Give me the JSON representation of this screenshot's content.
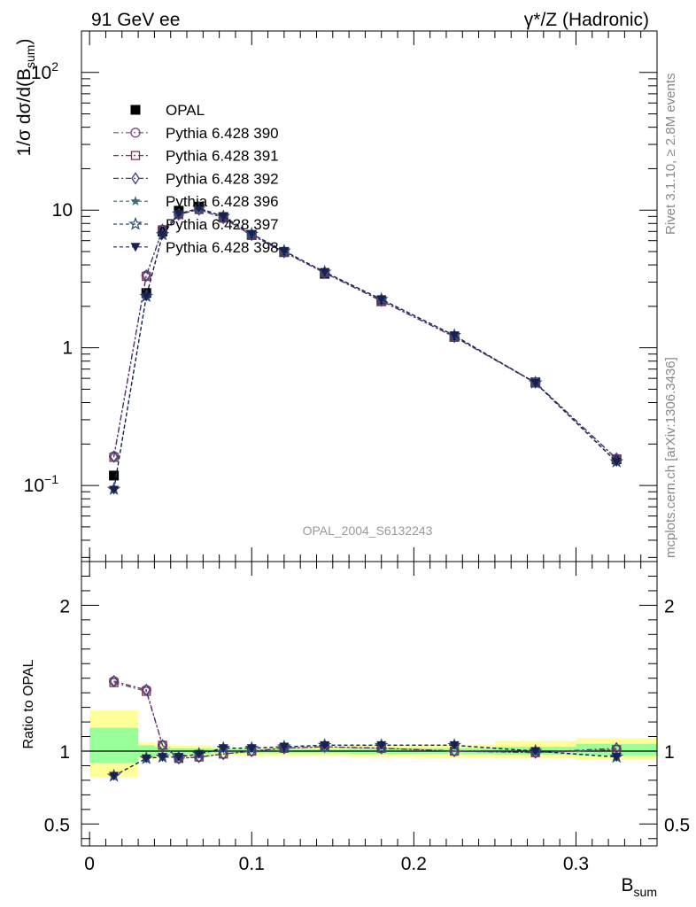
{
  "header": {
    "left": "91 GeV ee",
    "right": "γ*/Z (Hadronic)"
  },
  "side_labels": {
    "rivet": "Rivet 3.1.10, ≥ 2.8M events",
    "mcplots": "mcplots.cern.ch [arXiv:1306.3436]"
  },
  "watermark": "OPAL_2004_S6132243",
  "chart_data": [
    {
      "type": "scatter",
      "panel": "main",
      "ylabel": "1/σ dσ/d(B_sum)",
      "yscale": "log",
      "ylim": [
        0.028,
        200
      ],
      "xlim": [
        -0.005,
        0.35
      ],
      "yticks": [
        {
          "value": 0.1,
          "label": "10",
          "sup": "−1"
        },
        {
          "value": 1,
          "label": "1"
        },
        {
          "value": 10,
          "label": "10"
        },
        {
          "value": 100,
          "label": "10",
          "sup": "2"
        }
      ],
      "legend_position": "top-left",
      "x": [
        0.015,
        0.035,
        0.045,
        0.055,
        0.0675,
        0.0825,
        0.1,
        0.12,
        0.145,
        0.18,
        0.225,
        0.275,
        0.325
      ],
      "series": [
        {
          "name": "OPAL",
          "color": "#000000",
          "marker": "filled-square",
          "dash": "none",
          "values": [
            0.118,
            2.5,
            7.0,
            9.9,
            10.6,
            8.9,
            6.6,
            4.95,
            3.45,
            2.18,
            1.2,
            0.56,
            0.155
          ]
        },
        {
          "name": "Pythia 6.428 390",
          "color": "#7a4a82",
          "marker": "open-circle",
          "dash": "6,3,2,3",
          "values": [
            0.163,
            3.35,
            7.2,
            9.3,
            10.1,
            8.75,
            6.6,
            4.95,
            3.5,
            2.2,
            1.2,
            0.56,
            0.156
          ]
        },
        {
          "name": "Pythia 6.428 391",
          "color": "#7a3a4a",
          "marker": "open-square",
          "dash": "6,3,2,3",
          "values": [
            0.16,
            3.3,
            7.2,
            9.3,
            10.1,
            8.75,
            6.55,
            4.95,
            3.5,
            2.18,
            1.2,
            0.555,
            0.156
          ]
        },
        {
          "name": "Pythia 6.428 392",
          "color": "#4a3a82",
          "marker": "open-diamond",
          "dash": "6,3,2,3",
          "values": [
            0.162,
            3.35,
            7.2,
            9.3,
            10.1,
            8.75,
            6.6,
            4.95,
            3.5,
            2.2,
            1.2,
            0.56,
            0.157
          ]
        },
        {
          "name": "Pythia 6.428 396",
          "color": "#3a6a80",
          "marker": "star",
          "dash": "4,3",
          "values": [
            0.093,
            2.35,
            6.6,
            9.4,
            10.3,
            9.0,
            6.7,
            5.05,
            3.55,
            2.25,
            1.23,
            0.555,
            0.148
          ]
        },
        {
          "name": "Pythia 6.428 397",
          "color": "#2a4a70",
          "marker": "open-star",
          "dash": "4,3",
          "values": [
            0.094,
            2.37,
            6.65,
            9.4,
            10.3,
            9.0,
            6.7,
            5.05,
            3.55,
            2.25,
            1.23,
            0.557,
            0.149
          ]
        },
        {
          "name": "Pythia 6.428 398",
          "color": "#1a2050",
          "marker": "filled-triangle-down",
          "dash": "4,3",
          "values": [
            0.093,
            2.35,
            6.6,
            9.4,
            10.3,
            9.0,
            6.7,
            5.05,
            3.55,
            2.25,
            1.23,
            0.555,
            0.148
          ]
        }
      ]
    },
    {
      "type": "scatter",
      "panel": "ratio",
      "ylabel": "Ratio to OPAL",
      "xlabel": "B_sum",
      "ylim": [
        0.35,
        2.3
      ],
      "xlim": [
        -0.005,
        0.35
      ],
      "yticks": [
        {
          "value": 0.5,
          "label": "0.5"
        },
        {
          "value": 1,
          "label": "1"
        },
        {
          "value": 2,
          "label": "2"
        }
      ],
      "xticks": [
        {
          "value": 0,
          "label": "0"
        },
        {
          "value": 0.1,
          "label": "0.1"
        },
        {
          "value": 0.2,
          "label": "0.2"
        },
        {
          "value": 0.3,
          "label": "0.3"
        }
      ],
      "reference_line": 1.0,
      "bands": [
        {
          "x_low": 0.0,
          "x_high": 0.03,
          "yellow": [
            0.82,
            1.28
          ],
          "green": [
            0.92,
            1.16
          ]
        },
        {
          "x_low": 0.03,
          "x_high": 0.04,
          "yellow": [
            0.94,
            1.06
          ],
          "green": [
            0.96,
            1.04
          ]
        },
        {
          "x_low": 0.04,
          "x_high": 0.05,
          "yellow": [
            0.95,
            1.05
          ],
          "green": [
            0.97,
            1.03
          ]
        },
        {
          "x_low": 0.05,
          "x_high": 0.06,
          "yellow": [
            0.96,
            1.04
          ],
          "green": [
            0.98,
            1.02
          ]
        },
        {
          "x_low": 0.06,
          "x_high": 0.075,
          "yellow": [
            0.96,
            1.04
          ],
          "green": [
            0.98,
            1.02
          ]
        },
        {
          "x_low": 0.075,
          "x_high": 0.09,
          "yellow": [
            0.97,
            1.03
          ],
          "green": [
            0.985,
            1.015
          ]
        },
        {
          "x_low": 0.09,
          "x_high": 0.11,
          "yellow": [
            0.97,
            1.03
          ],
          "green": [
            0.985,
            1.015
          ]
        },
        {
          "x_low": 0.11,
          "x_high": 0.13,
          "yellow": [
            0.97,
            1.03
          ],
          "green": [
            0.985,
            1.015
          ]
        },
        {
          "x_low": 0.13,
          "x_high": 0.16,
          "yellow": [
            0.97,
            1.03
          ],
          "green": [
            0.985,
            1.015
          ]
        },
        {
          "x_low": 0.16,
          "x_high": 0.2,
          "yellow": [
            0.96,
            1.04
          ],
          "green": [
            0.98,
            1.02
          ]
        },
        {
          "x_low": 0.2,
          "x_high": 0.25,
          "yellow": [
            0.955,
            1.045
          ],
          "green": [
            0.98,
            1.02
          ]
        },
        {
          "x_low": 0.25,
          "x_high": 0.3,
          "yellow": [
            0.95,
            1.07
          ],
          "green": [
            0.975,
            1.03
          ]
        },
        {
          "x_low": 0.3,
          "x_high": 0.35,
          "yellow": [
            0.94,
            1.09
          ],
          "green": [
            0.97,
            1.05
          ]
        }
      ],
      "x": [
        0.015,
        0.035,
        0.045,
        0.055,
        0.0675,
        0.0825,
        0.1,
        0.12,
        0.145,
        0.18,
        0.225,
        0.275,
        0.325
      ],
      "series": [
        {
          "name": "Pythia 6.428 390",
          "color": "#7a4a82",
          "marker": "open-circle",
          "dash": "6,3,2,3",
          "values": [
            1.48,
            1.42,
            1.04,
            0.95,
            0.96,
            0.98,
            1.0,
            1.02,
            1.03,
            1.02,
            1.0,
            0.99,
            1.01
          ]
        },
        {
          "name": "Pythia 6.428 391",
          "color": "#7a3a4a",
          "marker": "open-square",
          "dash": "6,3,2,3",
          "values": [
            1.47,
            1.41,
            1.04,
            0.95,
            0.96,
            0.98,
            1.0,
            1.02,
            1.03,
            1.02,
            1.0,
            0.99,
            1.01
          ]
        },
        {
          "name": "Pythia 6.428 392",
          "color": "#4a3a82",
          "marker": "open-diamond",
          "dash": "6,3,2,3",
          "values": [
            1.48,
            1.42,
            1.04,
            0.95,
            0.96,
            0.98,
            1.0,
            1.02,
            1.03,
            1.02,
            1.0,
            0.99,
            1.02
          ]
        },
        {
          "name": "Pythia 6.428 396",
          "color": "#3a6a80",
          "marker": "star",
          "dash": "4,3",
          "values": [
            0.83,
            0.95,
            0.96,
            0.96,
            0.98,
            1.02,
            1.02,
            1.03,
            1.04,
            1.04,
            1.04,
            1.0,
            0.96
          ]
        },
        {
          "name": "Pythia 6.428 397",
          "color": "#2a4a70",
          "marker": "open-star",
          "dash": "4,3",
          "values": [
            0.83,
            0.95,
            0.96,
            0.96,
            0.98,
            1.02,
            1.02,
            1.03,
            1.04,
            1.04,
            1.04,
            1.0,
            0.96
          ]
        },
        {
          "name": "Pythia 6.428 398",
          "color": "#1a2050",
          "marker": "filled-triangle-down",
          "dash": "4,3",
          "values": [
            0.83,
            0.95,
            0.96,
            0.96,
            0.98,
            1.02,
            1.02,
            1.03,
            1.04,
            1.04,
            1.04,
            1.0,
            0.96
          ]
        }
      ]
    }
  ]
}
